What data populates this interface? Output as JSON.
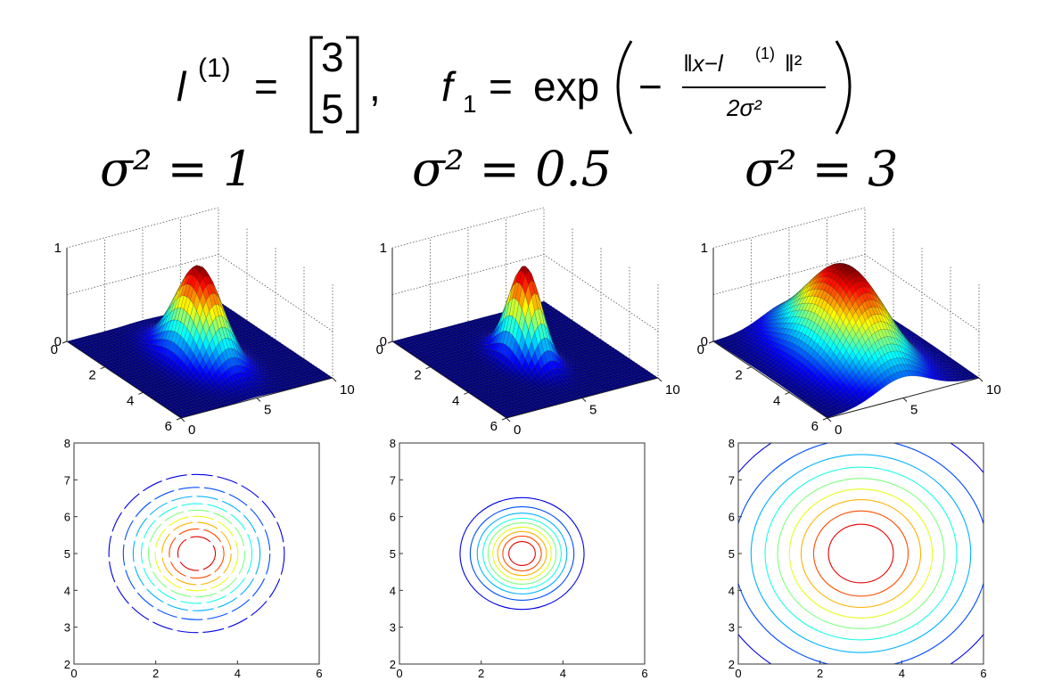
{
  "formula": {
    "lhs_var": "l",
    "lhs_sup": "(1)",
    "equals": "=",
    "vec_top": "3",
    "vec_bottom": "5",
    "comma": ",",
    "f_var": "f",
    "f_sub": "1",
    "exp_word": "exp",
    "minus": "−",
    "numerator_left": "‖x−l",
    "numerator_sup": "(1)",
    "numerator_right": "‖²",
    "denominator": "2σ²"
  },
  "chart_data": [
    {
      "type": "surface",
      "title": "σ² = 1",
      "sigma2": 1,
      "center": [
        3,
        5
      ],
      "xlim": [
        0,
        6
      ],
      "ylim": [
        0,
        10
      ],
      "zlim": [
        0,
        1
      ],
      "xticks": [
        "0",
        "2",
        "4",
        "6"
      ],
      "yticks": [
        "0",
        "5",
        "10"
      ],
      "zticks": [
        "0",
        "1"
      ],
      "colormap": "jet"
    },
    {
      "type": "surface",
      "title": "σ² = 0.5",
      "sigma2": 0.5,
      "center": [
        3,
        5
      ],
      "xlim": [
        0,
        6
      ],
      "ylim": [
        0,
        10
      ],
      "zlim": [
        0,
        1
      ],
      "xticks": [
        "0",
        "2",
        "4",
        "6"
      ],
      "yticks": [
        "0",
        "5",
        "10"
      ],
      "zticks": [
        "0",
        "1"
      ],
      "colormap": "jet"
    },
    {
      "type": "surface",
      "title": "σ² = 3",
      "sigma2": 3,
      "center": [
        3,
        5
      ],
      "xlim": [
        0,
        6
      ],
      "ylim": [
        0,
        10
      ],
      "zlim": [
        0,
        1
      ],
      "xticks": [
        "0",
        "2",
        "4",
        "6"
      ],
      "yticks": [
        "0",
        "5",
        "10"
      ],
      "zticks": [
        "0",
        "1"
      ],
      "colormap": "jet"
    },
    {
      "type": "contour",
      "sigma2": 1,
      "center": [
        3,
        5
      ],
      "xlim": [
        0,
        6
      ],
      "ylim": [
        2,
        8
      ],
      "xticks": [
        "0",
        "2",
        "4",
        "6"
      ],
      "yticks": [
        "2",
        "3",
        "4",
        "5",
        "6",
        "7",
        "8"
      ],
      "levels": [
        0.1,
        0.2,
        0.3,
        0.4,
        0.5,
        0.6,
        0.7,
        0.8,
        0.9
      ],
      "dashed": true,
      "colormap": "jet"
    },
    {
      "type": "contour",
      "sigma2": 0.5,
      "center": [
        3,
        5
      ],
      "xlim": [
        0,
        6
      ],
      "ylim": [
        2,
        8
      ],
      "xticks": [
        "0",
        "2",
        "4",
        "6"
      ],
      "yticks": [
        "2",
        "3",
        "4",
        "5",
        "6",
        "7",
        "8"
      ],
      "levels": [
        0.1,
        0.2,
        0.3,
        0.4,
        0.5,
        0.6,
        0.7,
        0.8,
        0.9
      ],
      "dashed": false,
      "colormap": "jet"
    },
    {
      "type": "contour",
      "sigma2": 3,
      "center": [
        3,
        5
      ],
      "xlim": [
        0,
        6
      ],
      "ylim": [
        2,
        8
      ],
      "xticks": [
        "0",
        "2",
        "4",
        "6"
      ],
      "yticks": [
        "2",
        "3",
        "4",
        "5",
        "6",
        "7",
        "8"
      ],
      "levels": [
        0.1,
        0.2,
        0.3,
        0.4,
        0.5,
        0.6,
        0.7,
        0.8,
        0.9
      ],
      "dashed": false,
      "colormap": "jet"
    }
  ]
}
